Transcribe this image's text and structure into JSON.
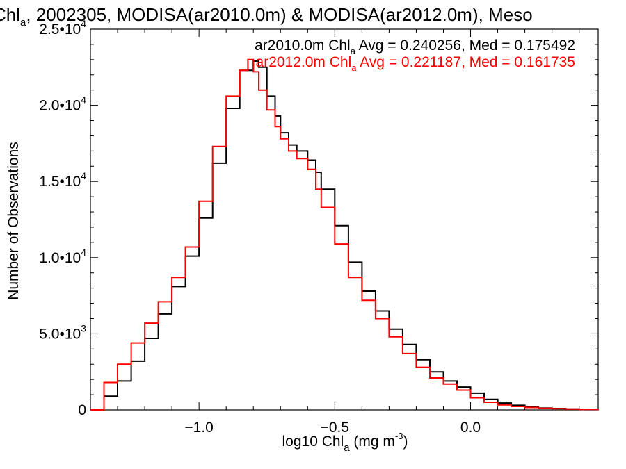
{
  "title": {
    "prefix": "Chl",
    "prefix_sub": "a",
    "rest": ", 2002305, MODISA(ar2010.0m) & MODISA(ar2012.0m), Meso"
  },
  "stats": [
    {
      "name": "ar2010.0m",
      "label": "ar2010.0m Chl",
      "sub": "a",
      "text": " Avg = 0.240256, Med = 0.175492",
      "color": "#000000"
    },
    {
      "name": "ar2012.0m",
      "label": "ar2012.0m Chl",
      "sub": "a",
      "text": " Avg = 0.221187, Med = 0.161735",
      "color": "#ff0000"
    }
  ],
  "axes": {
    "ylabel": "Number of Observations",
    "xlabel_pre": "log10 Chl",
    "xlabel_sub": "a",
    "xlabel_post": " (mg m",
    "xlabel_sup": "-3",
    "xlabel_end": ")"
  },
  "chart_data": {
    "type": "line",
    "xlim": [
      -1.4,
      0.47
    ],
    "ylim": [
      0,
      25000
    ],
    "x_ticks": [
      {
        "value": -1.0,
        "label": "−1.0"
      },
      {
        "value": -0.5,
        "label": "−0.5"
      },
      {
        "value": 0.0,
        "label": "0.0"
      }
    ],
    "y_ticks": [
      {
        "value": 0,
        "mant": "0",
        "exp": ""
      },
      {
        "value": 5000,
        "mant": "5.0•10",
        "exp": "3"
      },
      {
        "value": 10000,
        "mant": "1.0•10",
        "exp": "4"
      },
      {
        "value": 15000,
        "mant": "1.5•10",
        "exp": "4"
      },
      {
        "value": 20000,
        "mant": "2.0•10",
        "exp": "4"
      },
      {
        "value": 25000,
        "mant": "2.5•10",
        "exp": "4"
      }
    ],
    "grid": false,
    "series": [
      {
        "name": "ar2010.0m",
        "color": "#000000",
        "points": [
          [
            -1.4,
            0
          ],
          [
            -1.35,
            900
          ],
          [
            -1.3,
            1900
          ],
          [
            -1.25,
            3200
          ],
          [
            -1.2,
            4700
          ],
          [
            -1.15,
            6300
          ],
          [
            -1.1,
            8100
          ],
          [
            -1.05,
            10100
          ],
          [
            -1.0,
            12600
          ],
          [
            -0.95,
            16200
          ],
          [
            -0.9,
            19800
          ],
          [
            -0.85,
            22300
          ],
          [
            -0.8,
            22900
          ],
          [
            -0.78,
            22500
          ],
          [
            -0.75,
            20600
          ],
          [
            -0.72,
            19300
          ],
          [
            -0.7,
            18200
          ],
          [
            -0.67,
            17400
          ],
          [
            -0.64,
            17000
          ],
          [
            -0.6,
            16400
          ],
          [
            -0.57,
            15600
          ],
          [
            -0.55,
            14500
          ],
          [
            -0.5,
            12100
          ],
          [
            -0.45,
            9700
          ],
          [
            -0.4,
            7800
          ],
          [
            -0.35,
            6500
          ],
          [
            -0.3,
            5300
          ],
          [
            -0.25,
            4300
          ],
          [
            -0.2,
            3300
          ],
          [
            -0.15,
            2500
          ],
          [
            -0.1,
            1900
          ],
          [
            -0.05,
            1500
          ],
          [
            0.0,
            1100
          ],
          [
            0.05,
            700
          ],
          [
            0.1,
            450
          ],
          [
            0.15,
            300
          ],
          [
            0.2,
            200
          ],
          [
            0.25,
            130
          ],
          [
            0.3,
            90
          ],
          [
            0.35,
            60
          ],
          [
            0.4,
            40
          ],
          [
            0.47,
            20
          ]
        ]
      },
      {
        "name": "ar2012.0m",
        "color": "#ff0000",
        "points": [
          [
            -1.4,
            0
          ],
          [
            -1.35,
            1800
          ],
          [
            -1.3,
            3000
          ],
          [
            -1.25,
            4400
          ],
          [
            -1.2,
            5700
          ],
          [
            -1.15,
            7100
          ],
          [
            -1.1,
            8700
          ],
          [
            -1.05,
            10700
          ],
          [
            -1.0,
            13700
          ],
          [
            -0.95,
            17300
          ],
          [
            -0.9,
            20600
          ],
          [
            -0.85,
            22300
          ],
          [
            -0.82,
            23000
          ],
          [
            -0.8,
            22200
          ],
          [
            -0.78,
            21000
          ],
          [
            -0.75,
            19700
          ],
          [
            -0.72,
            18600
          ],
          [
            -0.7,
            17800
          ],
          [
            -0.67,
            17000
          ],
          [
            -0.64,
            16500
          ],
          [
            -0.6,
            15800
          ],
          [
            -0.57,
            14500
          ],
          [
            -0.55,
            13300
          ],
          [
            -0.5,
            10900
          ],
          [
            -0.45,
            8700
          ],
          [
            -0.4,
            7200
          ],
          [
            -0.35,
            6000
          ],
          [
            -0.3,
            4800
          ],
          [
            -0.25,
            3700
          ],
          [
            -0.2,
            2800
          ],
          [
            -0.15,
            2100
          ],
          [
            -0.1,
            1700
          ],
          [
            -0.05,
            1300
          ],
          [
            0.0,
            800
          ],
          [
            0.05,
            500
          ],
          [
            0.1,
            330
          ],
          [
            0.15,
            230
          ],
          [
            0.2,
            160
          ],
          [
            0.25,
            110
          ],
          [
            0.3,
            80
          ],
          [
            0.35,
            55
          ],
          [
            0.4,
            35
          ],
          [
            0.47,
            15
          ]
        ]
      }
    ]
  }
}
